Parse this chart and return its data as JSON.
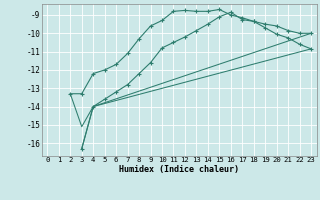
{
  "xlabel": "Humidex (Indice chaleur)",
  "bg_color": "#cce8e8",
  "grid_color": "#ffffff",
  "line_color": "#2e7d6e",
  "xlim": [
    -0.5,
    23.5
  ],
  "ylim": [
    -16.7,
    -8.4
  ],
  "yticks": [
    -16,
    -15,
    -14,
    -13,
    -12,
    -11,
    -10,
    -9
  ],
  "xticks": [
    0,
    1,
    2,
    3,
    4,
    5,
    6,
    7,
    8,
    9,
    10,
    11,
    12,
    13,
    14,
    15,
    16,
    17,
    18,
    19,
    20,
    21,
    22,
    23
  ],
  "line1_x": [
    2,
    3,
    4,
    5,
    6,
    7,
    8,
    9,
    10,
    11,
    12,
    13,
    14,
    15,
    16,
    17,
    18,
    19,
    20,
    21,
    22,
    23
  ],
  "line1_y": [
    -13.3,
    -13.3,
    -12.2,
    -12.0,
    -11.7,
    -11.1,
    -10.3,
    -9.6,
    -9.3,
    -8.8,
    -8.75,
    -8.8,
    -8.8,
    -8.7,
    -9.0,
    -9.15,
    -9.35,
    -9.5,
    -9.6,
    -9.85,
    -10.0,
    -10.0
  ],
  "line2_x": [
    3,
    4,
    5,
    6,
    7,
    8,
    9,
    10,
    11,
    12,
    13,
    14,
    15,
    16,
    17,
    18,
    19,
    20,
    21,
    22,
    23
  ],
  "line2_y": [
    -16.3,
    -14.0,
    -13.6,
    -13.2,
    -12.8,
    -12.2,
    -11.6,
    -10.8,
    -10.5,
    -10.2,
    -9.85,
    -9.5,
    -9.1,
    -8.85,
    -9.25,
    -9.35,
    -9.7,
    -10.05,
    -10.25,
    -10.6,
    -10.85
  ],
  "line3_x": [
    2,
    3,
    4,
    23
  ],
  "line3_y": [
    -13.3,
    -15.1,
    -14.0,
    -10.0
  ],
  "line4_x": [
    3,
    4,
    23
  ],
  "line4_y": [
    -16.3,
    -14.0,
    -10.85
  ],
  "xlabel_fontsize": 6.0,
  "tick_fontsize": 5.2
}
